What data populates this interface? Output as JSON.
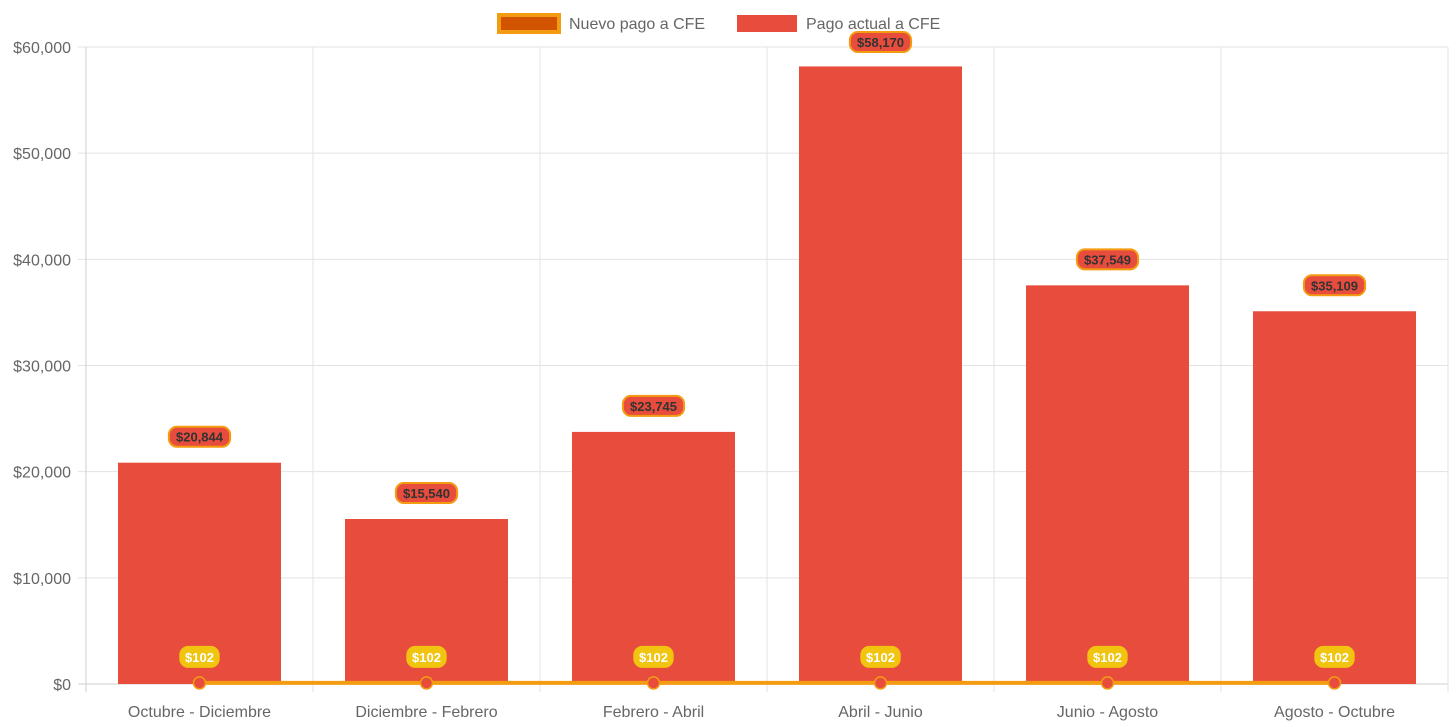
{
  "chart_data": {
    "type": "bar",
    "categories": [
      "Octubre - Diciembre",
      "Diciembre - Febrero",
      "Febrero - Abril",
      "Abril - Junio",
      "Junio - Agosto",
      "Agosto - Octubre"
    ],
    "series": [
      {
        "name": "Nuevo pago a CFE",
        "type": "line",
        "values": [
          102,
          102,
          102,
          102,
          102,
          102
        ],
        "labels": [
          "$102",
          "$102",
          "$102",
          "$102",
          "$102",
          "$102"
        ],
        "color": "#f39c12",
        "point_color": "#e74c3c"
      },
      {
        "name": "Pago actual a CFE",
        "type": "bar",
        "values": [
          20844,
          15540,
          23745,
          58170,
          37549,
          35109
        ],
        "labels": [
          "$20,844",
          "$15,540",
          "$23,745",
          "$58,170",
          "$37,549",
          "$35,109"
        ],
        "color": "#e74c3c"
      }
    ],
    "y_ticks": [
      "$0",
      "$10,000",
      "$20,000",
      "$30,000",
      "$40,000",
      "$50,000",
      "$60,000"
    ],
    "ylim": [
      0,
      60000
    ],
    "grid": true,
    "legend_position": "top-center",
    "title": "",
    "xlabel": "",
    "ylabel": ""
  }
}
